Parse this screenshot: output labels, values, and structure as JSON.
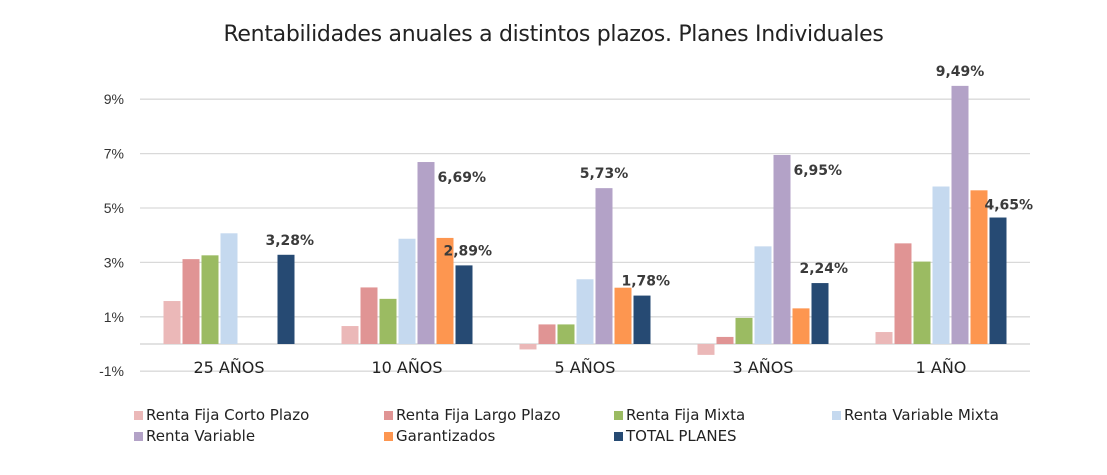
{
  "chart_data": {
    "type": "bar",
    "title": "Rentabilidades anuales a distintos plazos. Planes Individuales",
    "xlabel": "",
    "ylabel": "",
    "ylim": [
      -1,
      10
    ],
    "yticks": [
      -1,
      1,
      3,
      5,
      7,
      9
    ],
    "ytick_labels": [
      "-1%",
      "1%",
      "3%",
      "5%",
      "7%",
      "9%"
    ],
    "grid": true,
    "legend_position": "bottom",
    "categories": [
      "25 AÑOS",
      "10 AÑOS",
      "5 AÑOS",
      "3 AÑOS",
      "1 AÑO"
    ],
    "series": [
      {
        "name": "Renta Fija Corto Plazo",
        "color": "#EBB8B8",
        "values": [
          1.58,
          0.66,
          -0.2,
          -0.4,
          0.44
        ]
      },
      {
        "name": "Renta Fija Largo Plazo",
        "color": "#E09494",
        "values": [
          3.12,
          2.08,
          0.72,
          0.26,
          3.7
        ]
      },
      {
        "name": "Renta Fija Mixta",
        "color": "#9BBB62",
        "values": [
          3.26,
          1.66,
          0.72,
          0.96,
          3.03
        ]
      },
      {
        "name": "Renta Variable Mixta",
        "color": "#C5D9EF",
        "values": [
          4.07,
          3.87,
          2.38,
          3.59,
          5.79
        ]
      },
      {
        "name": "Renta Variable",
        "color": "#B3A2C7",
        "values": [
          null,
          6.69,
          5.73,
          6.95,
          9.49
        ]
      },
      {
        "name": "Garantizados",
        "color": "#FD9650",
        "values": [
          null,
          3.9,
          2.07,
          1.31,
          5.65
        ]
      },
      {
        "name": "TOTAL PLANES",
        "color": "#264A73",
        "values": [
          3.28,
          2.89,
          1.78,
          2.24,
          4.65
        ]
      }
    ],
    "data_labels": [
      {
        "series": "TOTAL PLANES",
        "category": "25 AÑOS",
        "text": "3,28%"
      },
      {
        "series": "Renta Variable",
        "category": "10 AÑOS",
        "text": "6,69%"
      },
      {
        "series": "TOTAL PLANES",
        "category": "10 AÑOS",
        "text": "2,89%"
      },
      {
        "series": "Renta Variable",
        "category": "5 AÑOS",
        "text": "5,73%"
      },
      {
        "series": "TOTAL PLANES",
        "category": "5 AÑOS",
        "text": "1,78%"
      },
      {
        "series": "Renta Variable",
        "category": "3 AÑOS",
        "text": "6,95%"
      },
      {
        "series": "TOTAL PLANES",
        "category": "3 AÑOS",
        "text": "2,24%"
      },
      {
        "series": "Renta Variable",
        "category": "1 AÑO",
        "text": "9,49%"
      },
      {
        "series": "TOTAL PLANES",
        "category": "1 AÑO",
        "text": "4,65%"
      }
    ]
  }
}
